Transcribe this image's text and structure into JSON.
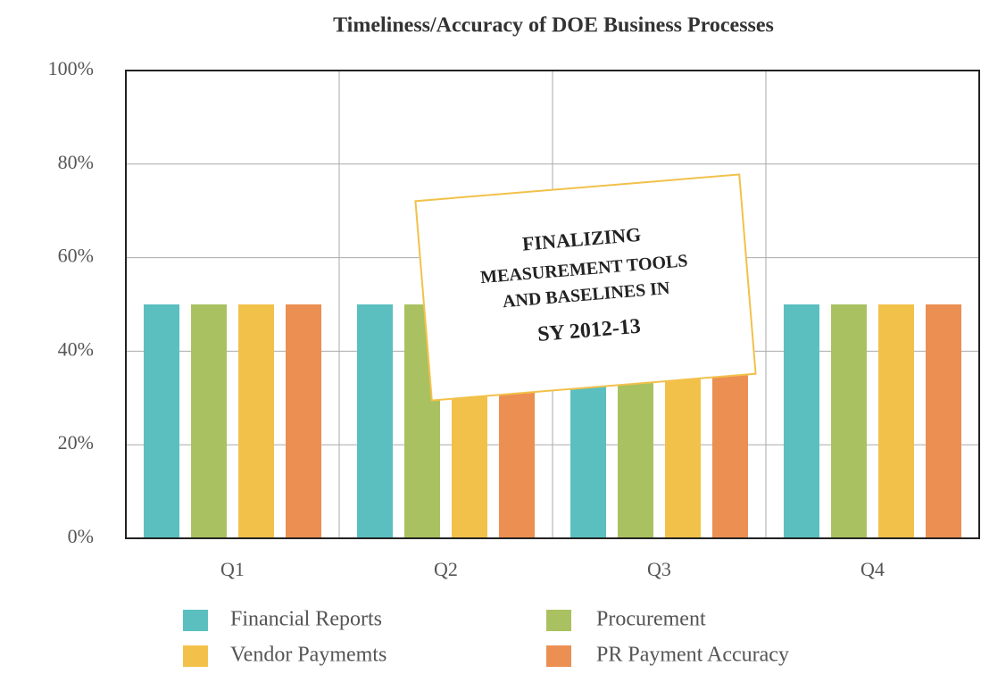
{
  "chart_data": {
    "type": "bar",
    "title": "Timeliness/Accuracy of DOE Business Processes",
    "categories": [
      "Q1",
      "Q2",
      "Q3",
      "Q4"
    ],
    "series": [
      {
        "name": "Financial Reports",
        "color": "#5bbfc0",
        "values": [
          50,
          50,
          50,
          50
        ]
      },
      {
        "name": "Procurement",
        "color": "#a9c160",
        "values": [
          50,
          50,
          50,
          50
        ]
      },
      {
        "name": "Vendor Paymemts",
        "color": "#f2c14a",
        "values": [
          50,
          50,
          50,
          50
        ]
      },
      {
        "name": "PR Payment Accuracy",
        "color": "#ec8f52",
        "values": [
          50,
          50,
          50,
          50
        ]
      }
    ],
    "ylim": [
      0,
      100
    ],
    "yticks": [
      {
        "value": 0,
        "label": "0%"
      },
      {
        "value": 20,
        "label": "20%"
      },
      {
        "value": 40,
        "label": "40%"
      },
      {
        "value": 60,
        "label": "60%"
      },
      {
        "value": 80,
        "label": "80%"
      },
      {
        "value": 100,
        "label": "100%"
      }
    ],
    "grid": true,
    "legend": "bottom",
    "annotation": [
      "FINALIZING",
      "MEASUREMENT TOOLS",
      "AND BASELINES IN",
      "SY 2012-13"
    ]
  }
}
